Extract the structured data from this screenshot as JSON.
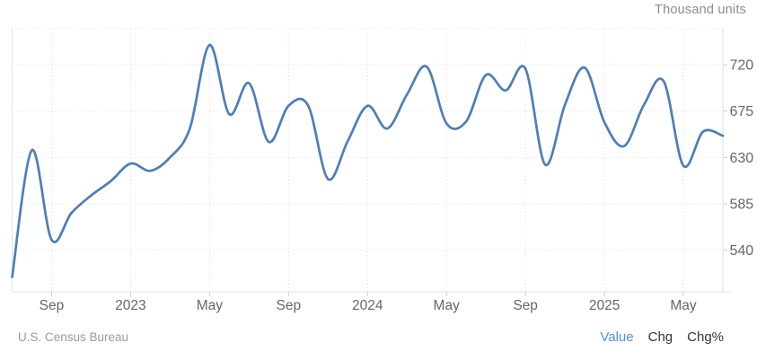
{
  "widget": {
    "units_label": "Thousand units"
  },
  "chart_data": {
    "type": "line",
    "title": "",
    "unit": "Thousand units",
    "source": "U.S. Census Bureau",
    "grid": "dotted",
    "legend": "none",
    "ylim": [
      500,
      755
    ],
    "y_ticks": [
      720,
      675,
      630,
      585,
      540
    ],
    "x_tick_labels": [
      "Sep",
      "2023",
      "May",
      "Sep",
      "2024",
      "May",
      "Sep",
      "2025",
      "May"
    ],
    "x_tick_indices": [
      2,
      6,
      10,
      14,
      18,
      22,
      26,
      30,
      34
    ],
    "x": [
      "2022-07",
      "2022-08",
      "2022-09",
      "2022-10",
      "2022-11",
      "2022-12",
      "2023-01",
      "2023-02",
      "2023-03",
      "2023-04",
      "2023-05",
      "2023-06",
      "2023-07",
      "2023-08",
      "2023-09",
      "2023-10",
      "2023-11",
      "2023-12",
      "2024-01",
      "2024-02",
      "2024-03",
      "2024-04",
      "2024-05",
      "2024-06",
      "2024-07",
      "2024-08",
      "2024-09",
      "2024-10",
      "2024-11",
      "2024-12",
      "2025-01",
      "2025-02",
      "2025-03",
      "2025-04",
      "2025-05",
      "2025-06",
      "2025-07"
    ],
    "series": [
      {
        "name": "Value",
        "color": "#4e7dba",
        "values": [
          514,
          637,
          550,
          576,
          593,
          607,
          624,
          617,
          630,
          658,
          739,
          672,
          702,
          645,
          680,
          680,
          609,
          646,
          680,
          658,
          691,
          718,
          663,
          665,
          710,
          695,
          716,
          623,
          681,
          717,
          664,
          641,
          681,
          704,
          622,
          655,
          651
        ]
      }
    ]
  },
  "footer": {
    "source": "U.S. Census Bureau",
    "links": [
      {
        "label": "Value",
        "active": true
      },
      {
        "label": "Chg",
        "active": false
      },
      {
        "label": "Chg%",
        "active": false
      }
    ]
  },
  "colors": {
    "line": "#4e7dba",
    "grid": "#dddddd",
    "border": "#e2e2e2",
    "tick": "#cccccc",
    "axis_text": "#666666",
    "active_link": "#4a90e2"
  }
}
